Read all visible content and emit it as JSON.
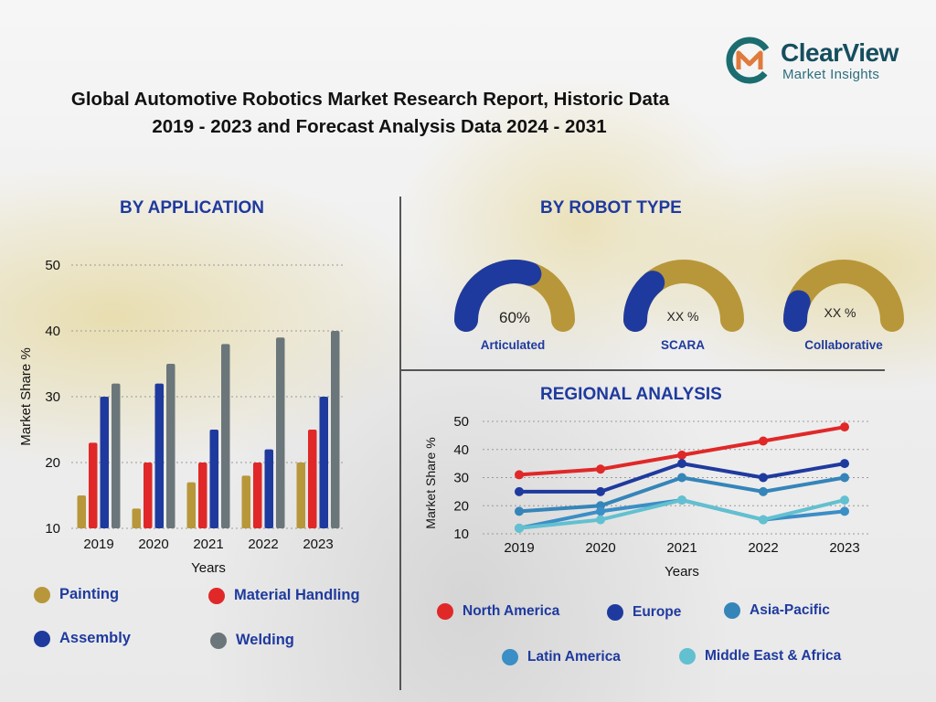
{
  "header": {
    "title_line1": "Global Automotive Robotics Market Research Report, Historic Data",
    "title_line2": "2019 - 2023 and Forecast Analysis Data 2024 - 2031"
  },
  "logo": {
    "name": "ClearView",
    "tagline": "Market Insights",
    "icon": "cvm-logo-icon"
  },
  "colors": {
    "painting": "#b8973a",
    "material_handling": "#e02828",
    "assembly": "#1f3a9e",
    "welding": "#6b767a",
    "north_america": "#e02828",
    "europe": "#1f3a9e",
    "asia_pacific": "#3585b9",
    "latin_america": "#3b8ec6",
    "middle_east_africa": "#62c0d0",
    "gauge_fill": "#1f3a9e",
    "gauge_track": "#b8973a"
  },
  "sections": {
    "application": "BY APPLICATION",
    "robot_type": "BY ROBOT TYPE",
    "regional": "REGIONAL ANALYSIS"
  },
  "application_legend": {
    "painting": "Painting",
    "material_handling": "Material Handling",
    "assembly": "Assembly",
    "welding": "Welding"
  },
  "gauges": [
    {
      "label": "Articulated",
      "value_text": "60%",
      "fill_fraction": 0.6
    },
    {
      "label": "SCARA",
      "value_text": "XX %",
      "fill_fraction": 0.28
    },
    {
      "label": "Collaborative",
      "value_text": "XX %",
      "fill_fraction": 0.12
    }
  ],
  "regional_legend": {
    "north_america": "North America",
    "europe": "Europe",
    "asia_pacific": "Asia-Pacific",
    "latin_america": "Latin America",
    "middle_east_africa": "Middle East & Africa"
  },
  "chart_data": [
    {
      "type": "bar",
      "title": "BY APPLICATION",
      "xlabel": "Years",
      "ylabel": "Market Share %",
      "categories": [
        "2019",
        "2020",
        "2021",
        "2022",
        "2023"
      ],
      "ylim": [
        10,
        50
      ],
      "yticks": [
        10,
        20,
        30,
        40,
        50
      ],
      "grid": true,
      "legend_position": "bottom",
      "series": [
        {
          "name": "Painting",
          "values": [
            15,
            13,
            17,
            18,
            20
          ]
        },
        {
          "name": "Material Handling",
          "values": [
            23,
            20,
            20,
            20,
            25
          ]
        },
        {
          "name": "Assembly",
          "values": [
            30,
            32,
            25,
            22,
            30
          ]
        },
        {
          "name": "Welding",
          "values": [
            32,
            35,
            38,
            39,
            40
          ]
        }
      ]
    },
    {
      "type": "line",
      "title": "REGIONAL ANALYSIS",
      "xlabel": "Years",
      "ylabel": "Market Share %",
      "categories": [
        "2019",
        "2020",
        "2021",
        "2022",
        "2023"
      ],
      "ylim": [
        10,
        50
      ],
      "yticks": [
        10,
        20,
        30,
        40,
        50
      ],
      "grid": true,
      "legend_position": "bottom",
      "series": [
        {
          "name": "North America",
          "values": [
            31,
            33,
            38,
            43,
            48
          ]
        },
        {
          "name": "Europe",
          "values": [
            25,
            25,
            35,
            30,
            35
          ]
        },
        {
          "name": "Asia-Pacific",
          "values": [
            18,
            20,
            30,
            25,
            30
          ]
        },
        {
          "name": "Latin America",
          "values": [
            12,
            18,
            22,
            15,
            18
          ]
        },
        {
          "name": "Middle East & Africa",
          "values": [
            12,
            15,
            22,
            15,
            22
          ]
        }
      ]
    }
  ]
}
